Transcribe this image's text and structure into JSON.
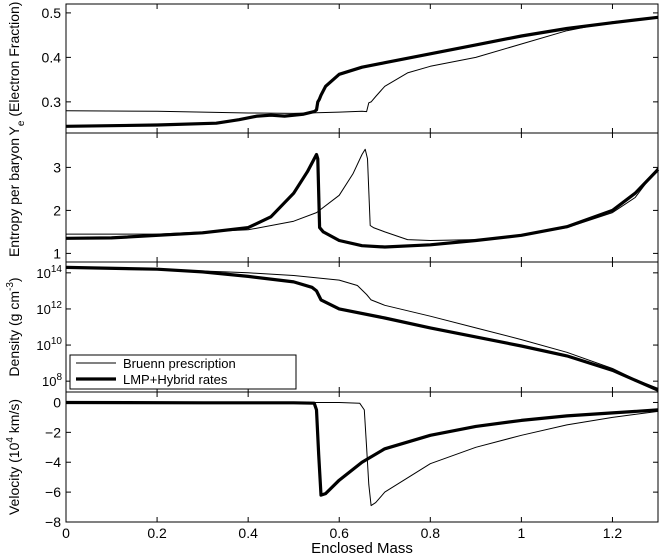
{
  "chart_data": {
    "type": "line",
    "shared_x": {
      "label": "Enclosed Mass",
      "lim": [
        0,
        1.3
      ],
      "ticks": [
        0,
        0.2,
        0.4,
        0.6,
        0.8,
        1,
        1.2
      ],
      "tick_labels": [
        "0",
        "0.2",
        "0.4",
        "0.6",
        "0.8",
        "1",
        "1.2"
      ]
    },
    "legend": {
      "panel": 2,
      "placement": "bottom-left",
      "entries": [
        {
          "name": "Bruenn prescription",
          "style": "thin"
        },
        {
          "name": "LMP+Hybrid rates",
          "style": "thick"
        }
      ]
    },
    "panels": [
      {
        "ylabel_main": "(Electron Fraction)",
        "ylabel_symbol": "Y",
        "ylabel_sub": "e",
        "ylim": [
          0.23,
          0.52
        ],
        "yticks": [
          0.3,
          0.4,
          0.5
        ],
        "ytick_labels": [
          "0.3",
          "0.4",
          "0.5"
        ],
        "series": [
          {
            "name": "Bruenn prescription",
            "style": "thin",
            "points": [
              [
                0,
                0.28
              ],
              [
                0.2,
                0.279
              ],
              [
                0.4,
                0.275
              ],
              [
                0.5,
                0.274
              ],
              [
                0.6,
                0.277
              ],
              [
                0.65,
                0.279
              ],
              [
                0.66,
                0.278
              ],
              [
                0.665,
                0.298
              ],
              [
                0.67,
                0.3
              ],
              [
                0.68,
                0.312
              ],
              [
                0.7,
                0.335
              ],
              [
                0.75,
                0.365
              ],
              [
                0.8,
                0.38
              ],
              [
                0.9,
                0.4
              ],
              [
                1.0,
                0.43
              ],
              [
                1.1,
                0.46
              ],
              [
                1.2,
                0.48
              ],
              [
                1.3,
                0.49
              ]
            ]
          },
          {
            "name": "LMP+Hybrid rates",
            "style": "thick",
            "points": [
              [
                0,
                0.245
              ],
              [
                0.2,
                0.248
              ],
              [
                0.33,
                0.252
              ],
              [
                0.38,
                0.26
              ],
              [
                0.42,
                0.268
              ],
              [
                0.45,
                0.27
              ],
              [
                0.48,
                0.268
              ],
              [
                0.52,
                0.272
              ],
              [
                0.545,
                0.278
              ],
              [
                0.55,
                0.282
              ],
              [
                0.553,
                0.3
              ],
              [
                0.556,
                0.305
              ],
              [
                0.56,
                0.315
              ],
              [
                0.57,
                0.335
              ],
              [
                0.6,
                0.362
              ],
              [
                0.65,
                0.378
              ],
              [
                0.7,
                0.388
              ],
              [
                0.8,
                0.408
              ],
              [
                0.9,
                0.428
              ],
              [
                1.0,
                0.448
              ],
              [
                1.1,
                0.465
              ],
              [
                1.2,
                0.478
              ],
              [
                1.3,
                0.49
              ]
            ]
          }
        ]
      },
      {
        "ylabel_main": "Entropy per baryon",
        "ylim": [
          0.8,
          3.8
        ],
        "yticks": [
          1,
          2,
          3
        ],
        "ytick_labels": [
          "1",
          "2",
          "3"
        ],
        "series": [
          {
            "name": "Bruenn prescription",
            "style": "thin",
            "points": [
              [
                0,
                1.45
              ],
              [
                0.2,
                1.45
              ],
              [
                0.4,
                1.55
              ],
              [
                0.5,
                1.75
              ],
              [
                0.55,
                1.95
              ],
              [
                0.6,
                2.35
              ],
              [
                0.63,
                2.85
              ],
              [
                0.65,
                3.3
              ],
              [
                0.657,
                3.42
              ],
              [
                0.662,
                3.2
              ],
              [
                0.668,
                1.65
              ],
              [
                0.675,
                1.6
              ],
              [
                0.7,
                1.5
              ],
              [
                0.75,
                1.32
              ],
              [
                0.8,
                1.3
              ],
              [
                0.9,
                1.32
              ],
              [
                1.0,
                1.42
              ],
              [
                1.1,
                1.6
              ],
              [
                1.2,
                1.95
              ],
              [
                1.25,
                2.3
              ],
              [
                1.3,
                3.0
              ]
            ]
          },
          {
            "name": "LMP+Hybrid rates",
            "style": "thick",
            "points": [
              [
                0,
                1.35
              ],
              [
                0.1,
                1.36
              ],
              [
                0.3,
                1.48
              ],
              [
                0.4,
                1.6
              ],
              [
                0.45,
                1.85
              ],
              [
                0.5,
                2.4
              ],
              [
                0.53,
                2.9
              ],
              [
                0.55,
                3.3
              ],
              [
                0.553,
                3.2
              ],
              [
                0.557,
                1.6
              ],
              [
                0.565,
                1.5
              ],
              [
                0.6,
                1.3
              ],
              [
                0.65,
                1.18
              ],
              [
                0.7,
                1.15
              ],
              [
                0.8,
                1.2
              ],
              [
                0.9,
                1.3
              ],
              [
                1.0,
                1.42
              ],
              [
                1.1,
                1.62
              ],
              [
                1.2,
                2.0
              ],
              [
                1.25,
                2.4
              ],
              [
                1.3,
                2.95
              ]
            ]
          }
        ]
      },
      {
        "ylabel_main": "Density (g cm",
        "ylabel_sup": "-3",
        "ylabel_tail": ")",
        "ylim": [
          7.4,
          14.6
        ],
        "yticks": [
          8,
          10,
          12,
          14
        ],
        "ytick_base": "10",
        "ytick_exps": [
          "8",
          "10",
          "12",
          "14"
        ],
        "series": [
          {
            "name": "Bruenn prescription",
            "style": "thin",
            "points": [
              [
                0,
                14.3
              ],
              [
                0.2,
                14.2
              ],
              [
                0.4,
                14.0
              ],
              [
                0.5,
                13.85
              ],
              [
                0.6,
                13.6
              ],
              [
                0.64,
                13.3
              ],
              [
                0.66,
                12.8
              ],
              [
                0.67,
                12.5
              ],
              [
                0.7,
                12.2
              ],
              [
                0.8,
                11.6
              ],
              [
                0.9,
                10.95
              ],
              [
                1.0,
                10.3
              ],
              [
                1.1,
                9.6
              ],
              [
                1.2,
                8.7
              ],
              [
                1.25,
                8.1
              ],
              [
                1.3,
                7.6
              ]
            ]
          },
          {
            "name": "LMP+Hybrid rates",
            "style": "thick",
            "points": [
              [
                0,
                14.3
              ],
              [
                0.2,
                14.2
              ],
              [
                0.3,
                14.05
              ],
              [
                0.4,
                13.8
              ],
              [
                0.5,
                13.5
              ],
              [
                0.54,
                13.2
              ],
              [
                0.55,
                13.0
              ],
              [
                0.56,
                12.5
              ],
              [
                0.6,
                12.0
              ],
              [
                0.7,
                11.5
              ],
              [
                0.8,
                10.95
              ],
              [
                0.9,
                10.45
              ],
              [
                1.0,
                9.95
              ],
              [
                1.1,
                9.4
              ],
              [
                1.2,
                8.6
              ],
              [
                1.3,
                7.5
              ]
            ]
          }
        ]
      },
      {
        "ylabel_main": "Velocity (10",
        "ylabel_sup": "4",
        "ylabel_tail": " km/s)",
        "ylim": [
          -8,
          0.7
        ],
        "yticks": [
          -8,
          -6,
          -4,
          -2,
          0
        ],
        "ytick_labels": [
          "−8",
          "−6",
          "−4",
          "−2",
          "0"
        ],
        "series": [
          {
            "name": "Bruenn prescription",
            "style": "thin",
            "points": [
              [
                0,
                0
              ],
              [
                0.3,
                0
              ],
              [
                0.6,
                0
              ],
              [
                0.645,
                -0.05
              ],
              [
                0.655,
                -0.5
              ],
              [
                0.66,
                -3.0
              ],
              [
                0.665,
                -5.5
              ],
              [
                0.67,
                -6.9
              ],
              [
                0.68,
                -6.7
              ],
              [
                0.7,
                -6.0
              ],
              [
                0.8,
                -4.1
              ],
              [
                0.9,
                -3.0
              ],
              [
                1.0,
                -2.2
              ],
              [
                1.1,
                -1.5
              ],
              [
                1.2,
                -1.0
              ],
              [
                1.3,
                -0.6
              ]
            ]
          },
          {
            "name": "LMP+Hybrid rates",
            "style": "thick",
            "points": [
              [
                0,
                0
              ],
              [
                0.3,
                -0.02
              ],
              [
                0.5,
                -0.02
              ],
              [
                0.545,
                -0.05
              ],
              [
                0.55,
                -0.5
              ],
              [
                0.555,
                -3.5
              ],
              [
                0.56,
                -6.2
              ],
              [
                0.57,
                -6.1
              ],
              [
                0.6,
                -5.2
              ],
              [
                0.65,
                -4.0
              ],
              [
                0.7,
                -3.1
              ],
              [
                0.8,
                -2.2
              ],
              [
                0.9,
                -1.6
              ],
              [
                1.0,
                -1.2
              ],
              [
                1.1,
                -0.9
              ],
              [
                1.2,
                -0.7
              ],
              [
                1.3,
                -0.5
              ]
            ]
          }
        ]
      }
    ]
  }
}
